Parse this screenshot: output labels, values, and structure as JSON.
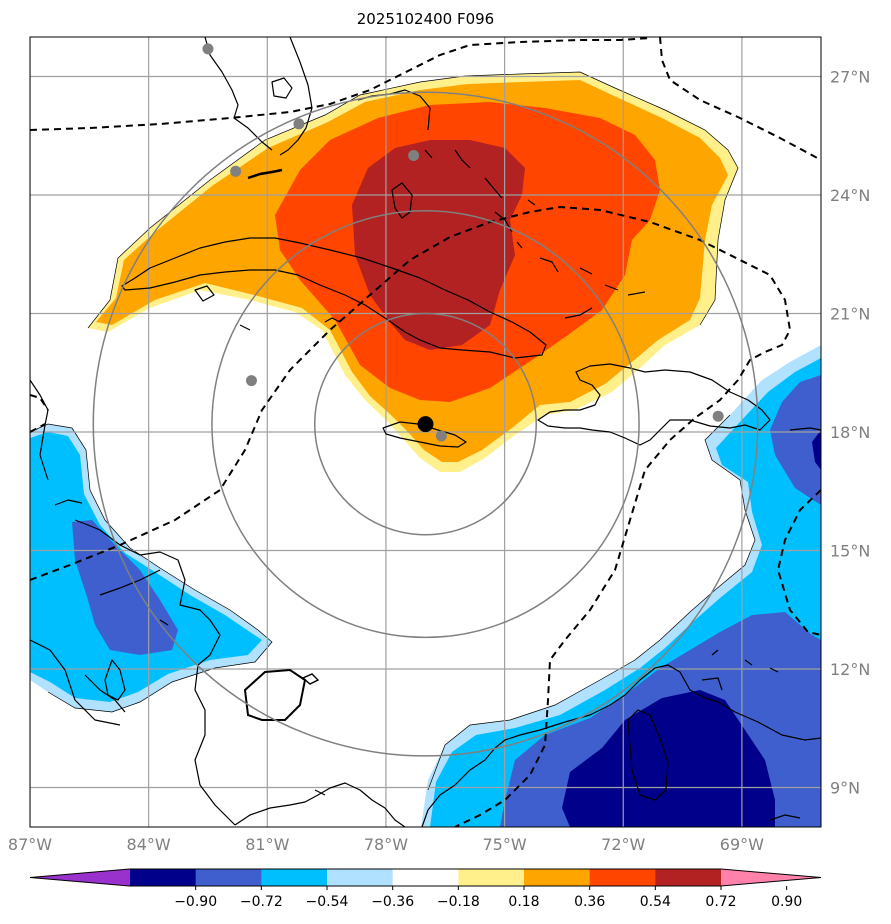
{
  "title": "2025102400 F096",
  "map": {
    "lon_range": [
      -87,
      -67
    ],
    "lat_range": [
      8,
      28
    ],
    "lon_ticks": [
      {
        "value": -87,
        "label": "87°W"
      },
      {
        "value": -84,
        "label": "84°W"
      },
      {
        "value": -81,
        "label": "81°W"
      },
      {
        "value": -78,
        "label": "78°W"
      },
      {
        "value": -75,
        "label": "75°W"
      },
      {
        "value": -72,
        "label": "72°W"
      },
      {
        "value": -69,
        "label": "69°W"
      }
    ],
    "lat_ticks": [
      {
        "value": 9,
        "label": "9°N"
      },
      {
        "value": 12,
        "label": "12°N"
      },
      {
        "value": 15,
        "label": "15°N"
      },
      {
        "value": 18,
        "label": "18°N"
      },
      {
        "value": 21,
        "label": "21°N"
      },
      {
        "value": 24,
        "label": "24°N"
      },
      {
        "value": 27,
        "label": "27°N"
      }
    ],
    "grid": true,
    "center": {
      "lon": -77.0,
      "lat": 18.2
    },
    "range_rings_deg": [
      2.8,
      5.4,
      8.4
    ],
    "stations": [
      {
        "lon": -82.5,
        "lat": 27.7
      },
      {
        "lon": -80.2,
        "lat": 25.8
      },
      {
        "lon": -81.8,
        "lat": 24.6
      },
      {
        "lon": -77.3,
        "lat": 25.0
      },
      {
        "lon": -81.4,
        "lat": 19.3
      },
      {
        "lon": -76.6,
        "lat": 17.9
      },
      {
        "lon": -69.6,
        "lat": 18.4
      }
    ]
  },
  "colorbar": {
    "tick_labels": [
      "−0.90",
      "−0.72",
      "−0.54",
      "−0.36",
      "−0.18",
      "0.18",
      "0.36",
      "0.54",
      "0.72",
      "0.90"
    ],
    "colors": [
      "#9932cc",
      "#00008b",
      "#3e5fcd",
      "#00bfff",
      "#b0e2ff",
      "#ffffff",
      "#fff08c",
      "#ffa500",
      "#ff4500",
      "#b22222",
      "#ff82ab"
    ],
    "extend": "both"
  }
}
